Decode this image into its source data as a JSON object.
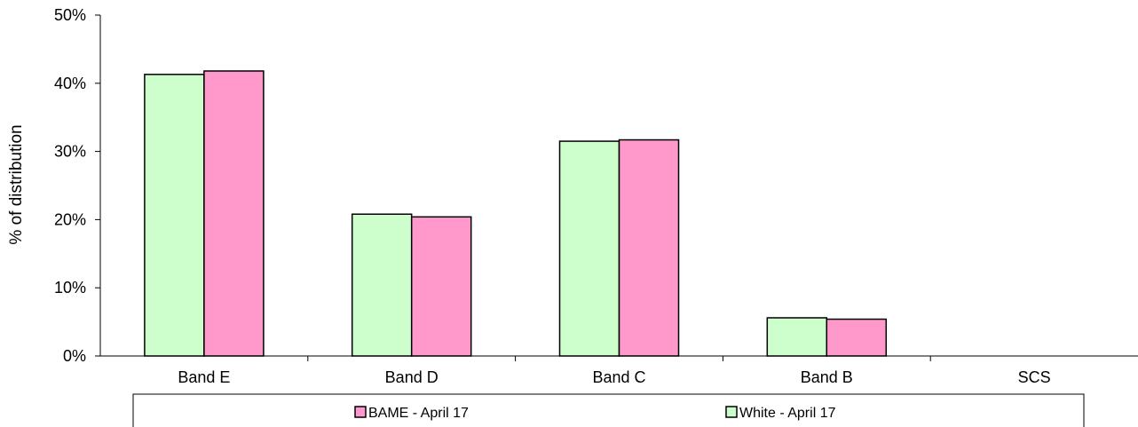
{
  "chart_data": {
    "type": "bar",
    "title": "",
    "xlabel": "",
    "ylabel": "% of distribution",
    "categories": [
      "Band E",
      "Band  D",
      "Band C",
      "Band B",
      "SCS"
    ],
    "ylim": [
      0,
      50
    ],
    "yticks": [
      "0%",
      "10%",
      "20%",
      "30%",
      "40%",
      "50%"
    ],
    "series": [
      {
        "name": "White - April 17",
        "values": [
          41.3,
          20.8,
          31.5,
          5.6,
          0
        ],
        "color": "#ccffcc"
      },
      {
        "name": "BAME - April 17",
        "values": [
          41.8,
          20.4,
          31.7,
          5.4,
          0
        ],
        "color": "#ff99cc"
      }
    ],
    "legend_order": [
      "BAME - April 17",
      "White - April 17"
    ],
    "legend_position": "bottom",
    "grid": false
  }
}
